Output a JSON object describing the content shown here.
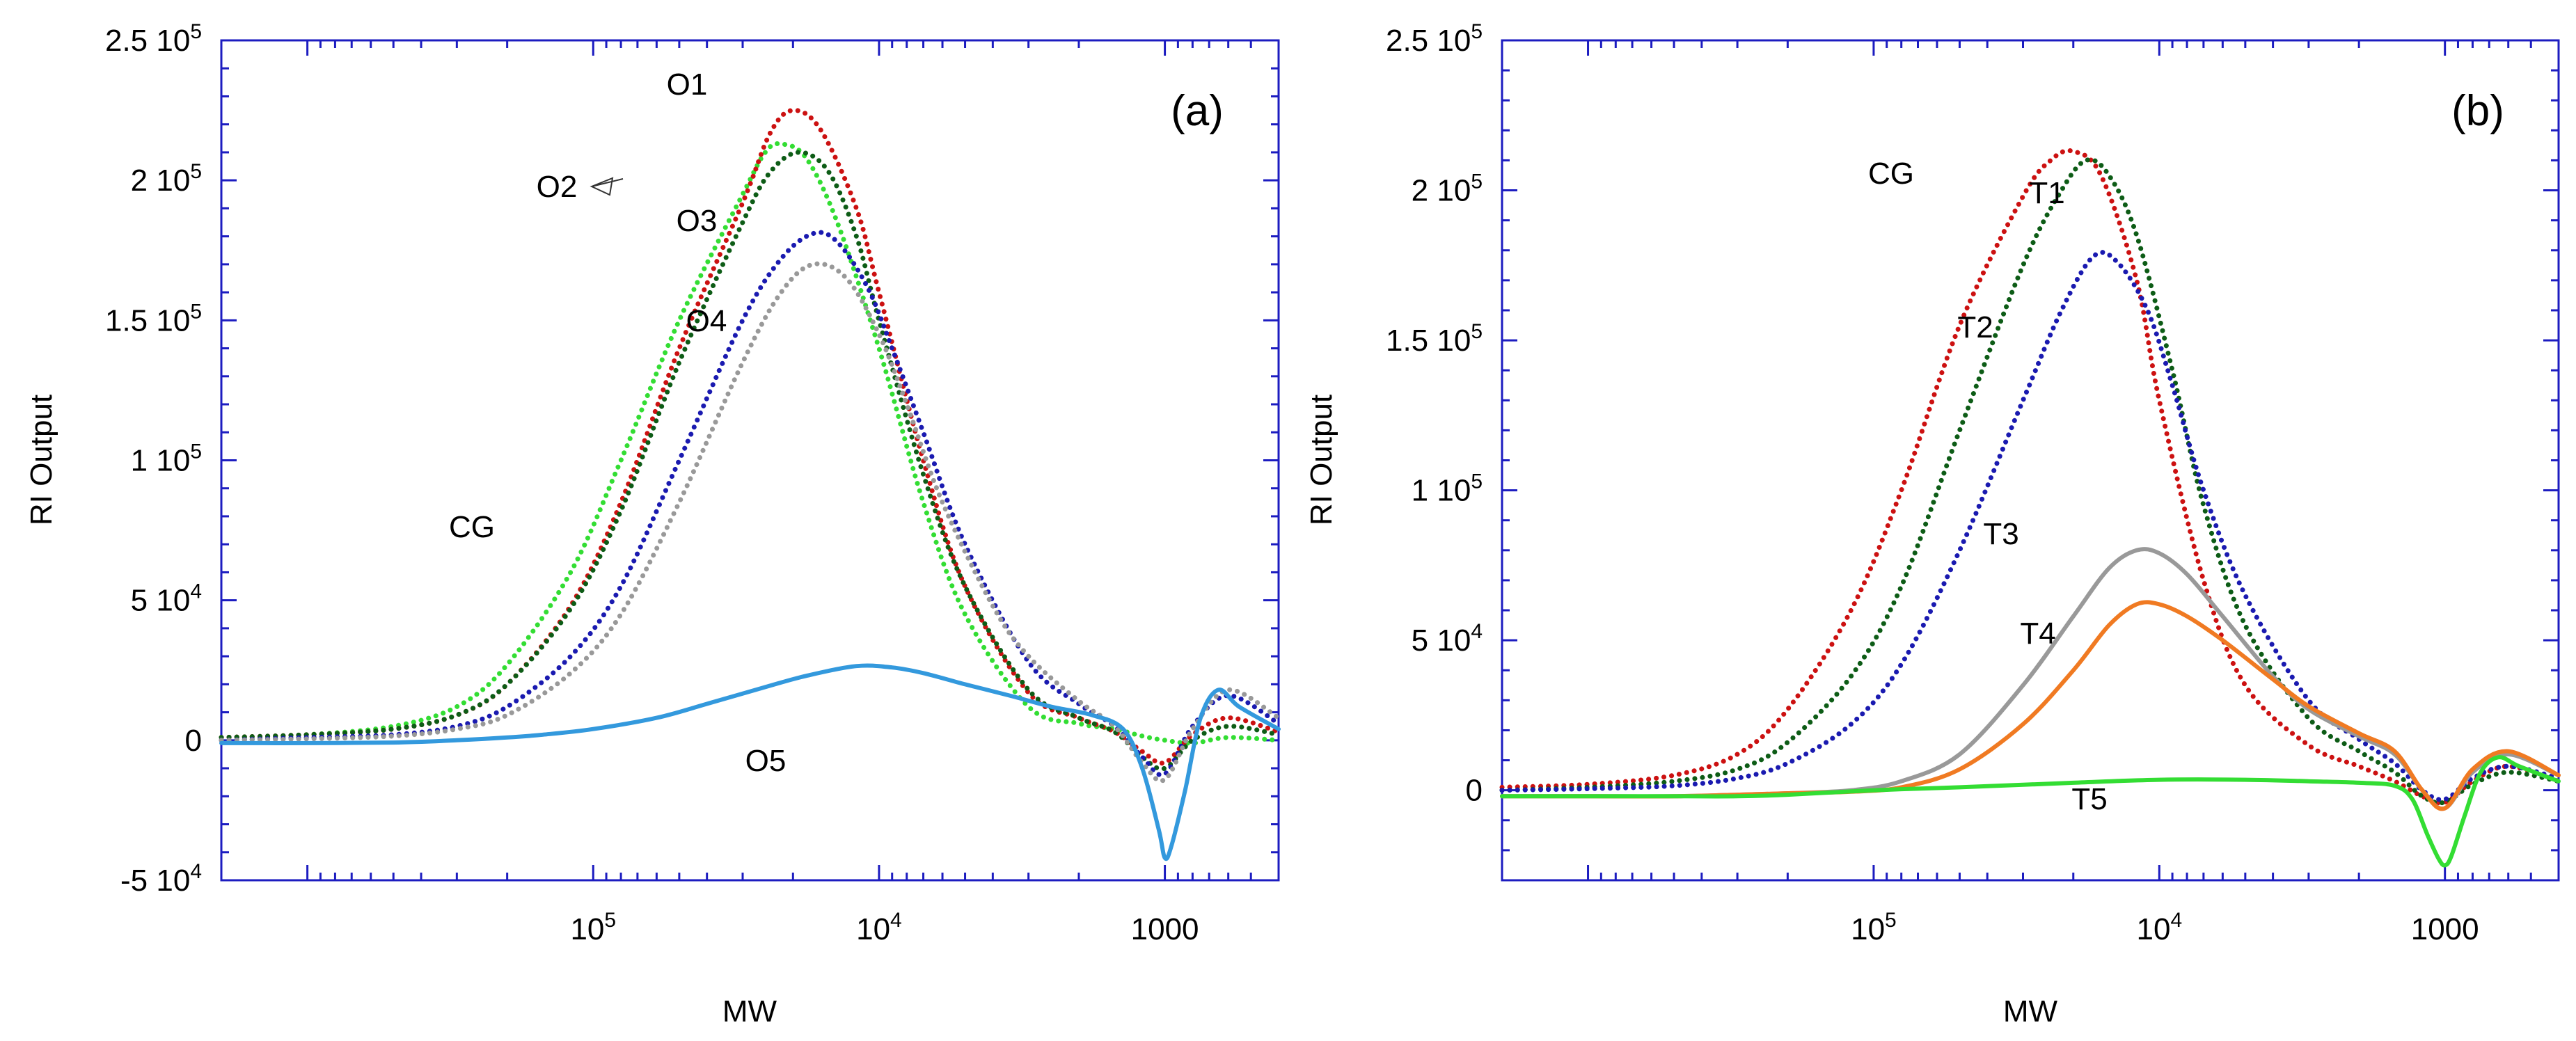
{
  "axis_color": "#1c1cc0",
  "chart_data": [
    {
      "type": "line",
      "panel": "(a)",
      "xlabel": "MW",
      "ylabel": "RI Output",
      "xscale": "log",
      "xaxis_reversed": true,
      "xlim": [
        2000000,
        400
      ],
      "ylim": [
        -50000,
        250000
      ],
      "x_ticks": [
        {
          "value": 100000,
          "mant": "10",
          "sup": "5"
        },
        {
          "value": 10000,
          "mant": "10",
          "sup": "4"
        },
        {
          "value": 1000,
          "mant": "1000",
          "sup": ""
        }
      ],
      "y_ticks": [
        {
          "value": -50000,
          "mant": "-5 10",
          "sup": "4"
        },
        {
          "value": 0,
          "mant": "0",
          "sup": ""
        },
        {
          "value": 50000,
          "mant": "5 10",
          "sup": "4"
        },
        {
          "value": 100000,
          "mant": "1 10",
          "sup": "5"
        },
        {
          "value": 150000,
          "mant": "1.5 10",
          "sup": "5"
        },
        {
          "value": 200000,
          "mant": "2 10",
          "sup": "5"
        },
        {
          "value": 250000,
          "mant": "2.5 10",
          "sup": "5"
        }
      ],
      "series": [
        {
          "name": "CG",
          "color": "#33dd33",
          "style": "dotted",
          "x": [
            2000000,
            1000000,
            500000,
            300000,
            200000,
            120000,
            80000,
            50000,
            30000,
            25000,
            22000,
            18000,
            14000,
            10000,
            7000,
            5000,
            3000,
            2000,
            1500,
            1200,
            1000,
            800,
            600,
            400
          ],
          "y": [
            1000,
            2000,
            5000,
            12000,
            27000,
            60000,
            100000,
            150000,
            195000,
            210000,
            213000,
            208000,
            185000,
            140000,
            85000,
            45000,
            12000,
            6000,
            4000,
            1500,
            0,
            -1000,
            1000,
            0
          ]
        },
        {
          "name": "O1",
          "color": "#cc1111",
          "style": "dotted",
          "x": [
            2000000,
            1000000,
            500000,
            300000,
            200000,
            120000,
            80000,
            50000,
            30000,
            24000,
            20000,
            16000,
            12000,
            10000,
            7000,
            5000,
            3000,
            2000,
            1500,
            1200,
            1000,
            800,
            600,
            400
          ],
          "y": [
            1000,
            2000,
            4000,
            9000,
            20000,
            48000,
            85000,
            140000,
            192000,
            217000,
            225000,
            218000,
            190000,
            160000,
            100000,
            55000,
            17000,
            8000,
            3000,
            -4000,
            -8000,
            2000,
            8000,
            3000
          ]
        },
        {
          "name": "O2",
          "color": "#0d5c16",
          "style": "dotted",
          "x": [
            2000000,
            1000000,
            500000,
            300000,
            200000,
            120000,
            80000,
            50000,
            30000,
            24000,
            19000,
            15000,
            12000,
            10000,
            7000,
            5000,
            3000,
            2000,
            1500,
            1200,
            1000,
            800,
            600,
            400
          ],
          "y": [
            1000,
            2000,
            4000,
            9000,
            20000,
            47000,
            82000,
            135000,
            185000,
            203000,
            210000,
            203000,
            180000,
            150000,
            95000,
            55000,
            18000,
            8000,
            3000,
            -6000,
            -10000,
            0,
            5000,
            2000
          ]
        },
        {
          "name": "O3",
          "color": "#1a1ab0",
          "style": "dotted",
          "x": [
            2000000,
            1000000,
            500000,
            300000,
            200000,
            120000,
            80000,
            50000,
            30000,
            22000,
            17000,
            14000,
            11000,
            9000,
            7000,
            5000,
            3000,
            2000,
            1500,
            1200,
            1000,
            800,
            600,
            400
          ],
          "y": [
            0,
            1000,
            2000,
            5000,
            12000,
            30000,
            55000,
            100000,
            150000,
            172000,
            181000,
            178000,
            162000,
            140000,
            110000,
            70000,
            28000,
            13000,
            5000,
            -6000,
            -12000,
            5000,
            16000,
            6000
          ]
        },
        {
          "name": "O4",
          "color": "#999999",
          "style": "dotted",
          "x": [
            2000000,
            1000000,
            500000,
            300000,
            200000,
            120000,
            80000,
            50000,
            30000,
            22000,
            17000,
            13000,
            10000,
            8000,
            6000,
            4000,
            3000,
            2000,
            1500,
            1200,
            1000,
            800,
            600,
            400
          ],
          "y": [
            0,
            500,
            1500,
            4000,
            9000,
            24000,
            45000,
            85000,
            135000,
            160000,
            170000,
            165000,
            145000,
            120000,
            85000,
            48000,
            30000,
            14000,
            5000,
            -8000,
            -14000,
            4000,
            18000,
            8000
          ]
        },
        {
          "name": "O5",
          "color": "#3399dd",
          "style": "solid",
          "x": [
            2000000,
            1000000,
            500000,
            300000,
            200000,
            150000,
            100000,
            60000,
            40000,
            25000,
            18000,
            12000,
            9000,
            7000,
            5000,
            3500,
            2500,
            1800,
            1400,
            1200,
            1050,
            1000,
            950,
            850,
            750,
            650,
            550,
            400
          ],
          "y": [
            -1000,
            -1000,
            -800,
            0,
            1000,
            2000,
            4000,
            8000,
            13000,
            19000,
            23000,
            26500,
            26000,
            24000,
            20000,
            16000,
            12000,
            9000,
            4000,
            -10000,
            -32000,
            -42000,
            -38000,
            -18000,
            8000,
            18000,
            12000,
            4000
          ]
        }
      ],
      "labels": [
        {
          "text": "O1"
        },
        {
          "text": "O2"
        },
        {
          "text": "O3"
        },
        {
          "text": "O4"
        },
        {
          "text": "O5"
        },
        {
          "text": "CG"
        },
        {
          "text": "(a)"
        }
      ]
    },
    {
      "type": "line",
      "panel": "(b)",
      "xlabel": "MW",
      "ylabel": "RI Output",
      "xscale": "log",
      "xaxis_reversed": true,
      "xlim": [
        2000000,
        400
      ],
      "ylim": [
        -30000,
        250000
      ],
      "x_ticks": [
        {
          "value": 100000,
          "mant": "10",
          "sup": "5"
        },
        {
          "value": 10000,
          "mant": "10",
          "sup": "4"
        },
        {
          "value": 1000,
          "mant": "1000",
          "sup": ""
        }
      ],
      "y_ticks": [
        {
          "value": 0,
          "mant": "0",
          "sup": ""
        },
        {
          "value": 50000,
          "mant": "5 10",
          "sup": "4"
        },
        {
          "value": 100000,
          "mant": "1 10",
          "sup": "5"
        },
        {
          "value": 150000,
          "mant": "1.5 10",
          "sup": "5"
        },
        {
          "value": 200000,
          "mant": "2 10",
          "sup": "5"
        },
        {
          "value": 250000,
          "mant": "2.5 10",
          "sup": "5"
        }
      ],
      "series": [
        {
          "name": "CG",
          "color": "#cc1111",
          "style": "dotted",
          "x": [
            2000000,
            1000000,
            500000,
            300000,
            200000,
            120000,
            80000,
            50000,
            30000,
            24000,
            20000,
            16000,
            12000,
            10000,
            7000,
            5000,
            3000,
            2000,
            1500,
            1200,
            1000,
            800,
            600,
            400
          ],
          "y": [
            1000,
            2000,
            5000,
            12000,
            27000,
            60000,
            100000,
            155000,
            198000,
            210000,
            213000,
            205000,
            170000,
            130000,
            70000,
            35000,
            15000,
            8000,
            3000,
            -2000,
            -4000,
            3000,
            8000,
            3000
          ]
        },
        {
          "name": "T1",
          "color": "#0d5c16",
          "style": "dotted",
          "x": [
            2000000,
            1000000,
            500000,
            300000,
            200000,
            120000,
            80000,
            50000,
            30000,
            22000,
            18000,
            15000,
            12000,
            9000,
            7000,
            5000,
            3000,
            2000,
            1500,
            1200,
            1000,
            800,
            600,
            400
          ],
          "y": [
            0,
            1000,
            3000,
            7000,
            16000,
            38000,
            68000,
            120000,
            175000,
            200000,
            210000,
            205000,
            185000,
            140000,
            95000,
            55000,
            24000,
            13000,
            6000,
            -2000,
            -4000,
            2000,
            6000,
            3000
          ]
        },
        {
          "name": "T2",
          "color": "#1a1ab0",
          "style": "dotted",
          "x": [
            2000000,
            1000000,
            500000,
            300000,
            200000,
            120000,
            80000,
            50000,
            30000,
            22000,
            17000,
            14000,
            11000,
            9000,
            7000,
            5000,
            3000,
            2000,
            1500,
            1200,
            1000,
            800,
            600,
            400
          ],
          "y": [
            0,
            500,
            1500,
            4000,
            9000,
            22000,
            42000,
            80000,
            130000,
            160000,
            178000,
            176000,
            160000,
            135000,
            100000,
            65000,
            30000,
            17000,
            9000,
            0,
            -3000,
            4000,
            8000,
            4000
          ]
        },
        {
          "name": "T3",
          "color": "#999999",
          "style": "solid",
          "x": [
            2000000,
            1000000,
            500000,
            300000,
            200000,
            120000,
            80000,
            50000,
            30000,
            20000,
            15000,
            12000,
            10000,
            8000,
            6000,
            4000,
            3000,
            2000,
            1500,
            1200,
            1000,
            800,
            600,
            400
          ],
          "y": [
            -2000,
            -2000,
            -2000,
            -1500,
            -1000,
            0,
            3000,
            12000,
            35000,
            58000,
            74000,
            80000,
            79000,
            72000,
            58000,
            38000,
            27000,
            18000,
            12000,
            0,
            -6000,
            6000,
            12000,
            5000
          ]
        },
        {
          "name": "T4",
          "color": "#f07a22",
          "style": "solid",
          "x": [
            2000000,
            1000000,
            500000,
            300000,
            200000,
            120000,
            80000,
            50000,
            30000,
            20000,
            15000,
            12000,
            10000,
            8000,
            6000,
            4000,
            3000,
            2000,
            1500,
            1200,
            1000,
            800,
            600,
            400
          ],
          "y": [
            -2000,
            -2000,
            -2000,
            -1500,
            -1000,
            -500,
            1000,
            7000,
            22000,
            40000,
            55000,
            62000,
            62000,
            58000,
            50000,
            37000,
            28000,
            19000,
            13000,
            0,
            -6000,
            7000,
            13000,
            5000
          ]
        },
        {
          "name": "T5",
          "color": "#33dd33",
          "style": "solid",
          "x": [
            2000000,
            1000000,
            500000,
            300000,
            200000,
            100000,
            50000,
            20000,
            10000,
            5000,
            3000,
            2000,
            1500,
            1300,
            1150,
            1050,
            1000,
            950,
            850,
            750,
            650,
            550,
            400
          ],
          "y": [
            -2000,
            -2000,
            -2000,
            -2000,
            -1500,
            0,
            1000,
            2500,
            3500,
            3500,
            3000,
            2500,
            1500,
            -3000,
            -15000,
            -23000,
            -25000,
            -22000,
            -8000,
            6000,
            11000,
            8000,
            3000
          ]
        }
      ],
      "labels": [
        {
          "text": "CG"
        },
        {
          "text": "T1"
        },
        {
          "text": "T2"
        },
        {
          "text": "T3"
        },
        {
          "text": "T4"
        },
        {
          "text": "T5"
        },
        {
          "text": "(b)"
        }
      ]
    }
  ]
}
